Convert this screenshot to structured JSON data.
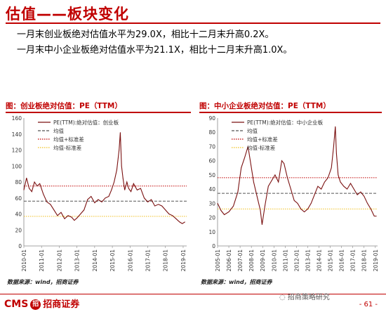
{
  "slide": {
    "title": "估值——板块变化",
    "bullets": [
      "一月末创业板绝对估值水平为29.0X，相比十二月末升高0.2X。",
      "一月末中小企业板绝对估值水平为21.1X，相比十二月末升高1.0X。"
    ],
    "footer_logo_text": "CMS",
    "footer_logo_mark": "招",
    "footer_logo_cn": "招商证券",
    "wechat_label": "招商策略研究",
    "page_number": "- 61 -"
  },
  "colors": {
    "accent": "#c00000",
    "pe_line": "#7a1010",
    "mean": "#555555",
    "plus_sd": "#c00000",
    "minus_sd": "#f0c020"
  },
  "chart_data": [
    {
      "type": "line",
      "title": "图：创业板绝对估值：PE（TTM）",
      "source": "数据来源：wind，招商证券",
      "legend": [
        "PE(TTM):绝对估值：创业板",
        "均值",
        "均值+标准差",
        "均值-标准差"
      ],
      "legend_placement": "top-left",
      "x_tick_labels": [
        "2010-01",
        "2011-01",
        "2012-01",
        "2013-01",
        "2014-01",
        "2015-01",
        "2016-01",
        "2017-01",
        "2018-01",
        "2019-01"
      ],
      "yticks": [
        0,
        20,
        40,
        60,
        80,
        100,
        120,
        140,
        160
      ],
      "ylim": [
        0,
        160
      ],
      "xlim": [
        2010.0,
        2019.2
      ],
      "reference_lines": {
        "mean": 56,
        "mean_plus_sd": 75,
        "mean_minus_sd": 37
      },
      "grid": false,
      "series": [
        {
          "name": "PE(TTM):绝对估值：创业板",
          "x": [
            2010.0,
            2010.15,
            2010.3,
            2010.45,
            2010.6,
            2010.75,
            2010.9,
            2011.1,
            2011.3,
            2011.5,
            2011.7,
            2011.9,
            2012.1,
            2012.3,
            2012.5,
            2012.7,
            2012.85,
            2013.0,
            2013.2,
            2013.4,
            2013.6,
            2013.8,
            2014.0,
            2014.2,
            2014.4,
            2014.6,
            2014.8,
            2014.95,
            2015.1,
            2015.25,
            2015.38,
            2015.45,
            2015.52,
            2015.6,
            2015.7,
            2015.82,
            2015.92,
            2016.05,
            2016.2,
            2016.4,
            2016.6,
            2016.8,
            2017.0,
            2017.2,
            2017.4,
            2017.6,
            2017.8,
            2018.0,
            2018.2,
            2018.4,
            2018.6,
            2018.8,
            2018.95,
            2019.1
          ],
          "y": [
            70,
            85,
            72,
            68,
            80,
            75,
            78,
            65,
            55,
            52,
            45,
            38,
            42,
            34,
            38,
            36,
            32,
            35,
            40,
            45,
            58,
            62,
            54,
            58,
            55,
            60,
            62,
            70,
            80,
            95,
            120,
            142,
            100,
            85,
            70,
            80,
            72,
            68,
            78,
            70,
            72,
            60,
            55,
            58,
            50,
            52,
            50,
            45,
            40,
            38,
            34,
            30,
            28,
            30
          ]
        }
      ]
    },
    {
      "type": "line",
      "title": "图：中小企业板绝对估值：PE（TTM）",
      "source": "数据来源：wind，招商证券",
      "legend": [
        "PE(TTM):绝对估值：中小企业板",
        "均值",
        "均值+标准差",
        "均值-标准差"
      ],
      "legend_placement": "top-left",
      "x_tick_labels": [
        "2005-01",
        "2006-01",
        "2007-01",
        "2008-01",
        "2009-01",
        "2010-01",
        "2011-01",
        "2012-01",
        "2013-01",
        "2014-01",
        "2015-01",
        "2016-01",
        "2017-01",
        "2018-01",
        "2019-01"
      ],
      "yticks": [
        0,
        10,
        20,
        30,
        40,
        50,
        60,
        70,
        80,
        90
      ],
      "ylim": [
        0,
        90
      ],
      "xlim": [
        2005.0,
        2019.2
      ],
      "reference_lines": {
        "mean": 37,
        "mean_plus_sd": 48,
        "mean_minus_sd": 26
      },
      "grid": false,
      "series": [
        {
          "name": "PE(TTM):绝对估值：中小企业板",
          "x": [
            2005.0,
            2005.3,
            2005.6,
            2006.0,
            2006.4,
            2006.8,
            2007.1,
            2007.4,
            2007.7,
            2007.9,
            2008.2,
            2008.5,
            2008.8,
            2008.95,
            2009.2,
            2009.5,
            2009.8,
            2010.1,
            2010.4,
            2010.7,
            2010.9,
            2011.2,
            2011.5,
            2011.8,
            2012.1,
            2012.4,
            2012.7,
            2013.0,
            2013.3,
            2013.6,
            2013.9,
            2014.2,
            2014.5,
            2014.8,
            2015.1,
            2015.3,
            2015.45,
            2015.55,
            2015.7,
            2015.9,
            2016.2,
            2016.5,
            2016.8,
            2017.1,
            2017.4,
            2017.7,
            2018.0,
            2018.3,
            2018.6,
            2018.9,
            2019.1
          ],
          "y": [
            30,
            25,
            22,
            24,
            28,
            38,
            55,
            62,
            70,
            60,
            45,
            35,
            25,
            15,
            28,
            42,
            46,
            50,
            45,
            60,
            58,
            48,
            40,
            32,
            30,
            26,
            24,
            26,
            30,
            36,
            42,
            40,
            45,
            48,
            55,
            70,
            84,
            65,
            50,
            45,
            42,
            40,
            44,
            40,
            36,
            38,
            35,
            30,
            26,
            21,
            21
          ]
        }
      ]
    }
  ]
}
